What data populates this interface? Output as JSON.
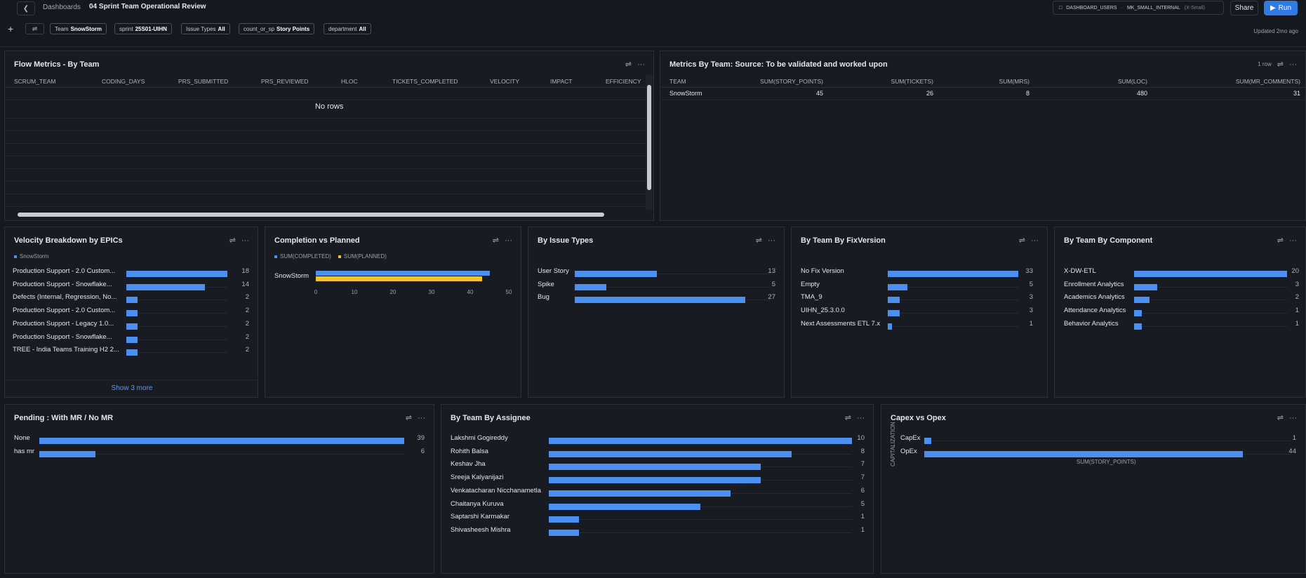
{
  "header": {
    "back_icon": "chevron-left-icon",
    "breadcrumb": "Dashboards",
    "title": "04 Sprint Team Operational Review",
    "role": "DASHBOARD_USERS",
    "warehouse": "MK_SMALL_INTERNAL",
    "warehouse_size": "(X-Small)",
    "share": "Share",
    "run": "Run",
    "updated": "Updated 2mo ago"
  },
  "filters": [
    {
      "label": "Team",
      "value": "SnowStorm"
    },
    {
      "label": "sprint",
      "value": "25S01-UIHN"
    },
    {
      "label": "Issue Types",
      "value": "All"
    },
    {
      "label": "count_or_sp",
      "value": "Story Points"
    },
    {
      "label": "department",
      "value": "All"
    }
  ],
  "flow_metrics": {
    "title": "Flow Metrics - By Team",
    "columns": [
      "SCRUM_TEAM",
      "CODING_DAYS",
      "PRS_SUBMITTED",
      "PRS_REVIEWED",
      "HLOC",
      "TICKETS_COMPLETED",
      "VELOCITY",
      "IMPACT",
      "EFFICIENCY"
    ],
    "empty": "No rows"
  },
  "metrics_by_team": {
    "title": "Metrics By Team: Source: To be validated and worked upon",
    "rows_note": "1 row",
    "columns": [
      "TEAM",
      "SUM(STORY_POINTS)",
      "SUM(TICKETS)",
      "SUM(MRS)",
      "SUM(LOC)",
      "SUM(MR_COMMENTS)"
    ],
    "rows": [
      [
        "SnowStorm",
        "45",
        "26",
        "8",
        "480",
        "31"
      ]
    ]
  },
  "velocity_epics": {
    "title": "Velocity Breakdown by EPICs",
    "legend": "SnowStorm",
    "show_more": "Show 3 more",
    "items": [
      {
        "label": "Production Support - 2.0 Custom...",
        "value": 18
      },
      {
        "label": "Production Support - Snowflake...",
        "value": 14
      },
      {
        "label": "Defects (Internal, Regression, No...",
        "value": 2
      },
      {
        "label": "Production Support - 2.0 Custom...",
        "value": 2
      },
      {
        "label": "Production Support - Legacy 1.0...",
        "value": 2
      },
      {
        "label": "Production Support - Snowflake...",
        "value": 2
      },
      {
        "label": "TREE - India Teams Training H2 2...",
        "value": 2
      }
    ]
  },
  "completion": {
    "title": "Completion vs Planned",
    "legend_completed": "SUM(COMPLETED)",
    "legend_planned": "SUM(PLANNED)",
    "category": "SnowStorm",
    "completed": 45,
    "planned": 43,
    "ticks": [
      "0",
      "10",
      "20",
      "30",
      "40",
      "50"
    ]
  },
  "issue_types": {
    "title": "By Issue Types",
    "items": [
      {
        "label": "User Story",
        "value": 13
      },
      {
        "label": "Spike",
        "value": 5
      },
      {
        "label": "Bug",
        "value": 27
      }
    ]
  },
  "fix_version": {
    "title": "By Team By FixVersion",
    "items": [
      {
        "label": "No Fix Version",
        "value": 33
      },
      {
        "label": "Empty",
        "value": 5
      },
      {
        "label": "TMA_9",
        "value": 3
      },
      {
        "label": "UIHN_25.3.0.0",
        "value": 3
      },
      {
        "label": "Next Assessments ETL 7.x",
        "value": 1
      }
    ]
  },
  "component": {
    "title": "By Team By Component",
    "items": [
      {
        "label": "X-DW-ETL",
        "value": 20
      },
      {
        "label": "Enrollment Analytics",
        "value": 3
      },
      {
        "label": "Academics Analytics",
        "value": 2
      },
      {
        "label": "Attendance Analytics",
        "value": 1
      },
      {
        "label": "Behavior Analytics",
        "value": 1
      }
    ]
  },
  "pending": {
    "title": "Pending : With MR / No MR",
    "items": [
      {
        "label": "None",
        "value": 39
      },
      {
        "label": "has mr",
        "value": 6
      }
    ]
  },
  "assignee": {
    "title": "By Team By Assignee",
    "items": [
      {
        "label": "Lakshmi Gogireddy",
        "value": 10
      },
      {
        "label": "Rohith Balsa",
        "value": 8
      },
      {
        "label": "Keshav Jha",
        "value": 7
      },
      {
        "label": "Sreeja Kalyanijazi",
        "value": 7
      },
      {
        "label": "Venkatacharan Nicchanametla",
        "value": 6
      },
      {
        "label": "Chaitanya Kuruva",
        "value": 5
      },
      {
        "label": "Saptarshi Karmakar",
        "value": 1
      },
      {
        "label": "Shivasheesh Mishra",
        "value": 1
      }
    ]
  },
  "capex": {
    "title": "Capex vs Opex",
    "y_axis": "CAPITALIZATION",
    "x_axis": "SUM(STORY_POINTS)",
    "items": [
      {
        "label": "CapEx",
        "value": 1
      },
      {
        "label": "OpEx",
        "value": 44
      }
    ]
  },
  "colors": {
    "bar": "#4b8ff0",
    "planned": "#f2c232",
    "run": "#2f7be3",
    "bg": "#15181e"
  },
  "icons": {
    "settings": "sliders-icon",
    "more": "more-icon",
    "run": "play-icon",
    "add": "plus-icon"
  },
  "chart_data": [
    {
      "type": "bar",
      "title": "Velocity Breakdown by EPICs",
      "categories": [
        "Production Support - 2.0 Custom...",
        "Production Support - Snowflake...",
        "Defects (Internal, Regression, No...",
        "Production Support - 2.0 Custom...",
        "Production Support - Legacy 1.0...",
        "Production Support - Snowflake...",
        "TREE - India Teams Training H2 2..."
      ],
      "series": [
        {
          "name": "SnowStorm",
          "values": [
            18,
            14,
            2,
            2,
            2,
            2,
            2
          ]
        }
      ]
    },
    {
      "type": "bar",
      "title": "Completion vs Planned",
      "categories": [
        "SnowStorm"
      ],
      "series": [
        {
          "name": "SUM(COMPLETED)",
          "values": [
            45
          ]
        },
        {
          "name": "SUM(PLANNED)",
          "values": [
            43
          ]
        }
      ],
      "xlim": [
        0,
        50
      ]
    },
    {
      "type": "bar",
      "title": "By Issue Types",
      "categories": [
        "User Story",
        "Spike",
        "Bug"
      ],
      "values": [
        13,
        5,
        27
      ]
    },
    {
      "type": "bar",
      "title": "By Team By FixVersion",
      "categories": [
        "No Fix Version",
        "Empty",
        "TMA_9",
        "UIHN_25.3.0.0",
        "Next Assessments ETL 7.x"
      ],
      "values": [
        33,
        5,
        3,
        3,
        1
      ]
    },
    {
      "type": "bar",
      "title": "By Team By Component",
      "categories": [
        "X-DW-ETL",
        "Enrollment Analytics",
        "Academics Analytics",
        "Attendance Analytics",
        "Behavior Analytics"
      ],
      "values": [
        20,
        3,
        2,
        1,
        1
      ]
    },
    {
      "type": "bar",
      "title": "Pending : With MR / No MR",
      "categories": [
        "None",
        "has mr"
      ],
      "values": [
        39,
        6
      ]
    },
    {
      "type": "bar",
      "title": "By Team By Assignee",
      "categories": [
        "Lakshmi Gogireddy",
        "Rohith Balsa",
        "Keshav Jha",
        "Sreeja Kalyanijazi",
        "Venkatacharan Nicchanametla",
        "Chaitanya Kuruva",
        "Saptarshi Karmakar",
        "Shivasheesh Mishra"
      ],
      "values": [
        10,
        8,
        7,
        7,
        6,
        5,
        1,
        1
      ]
    },
    {
      "type": "bar",
      "title": "Capex vs Opex",
      "categories": [
        "CapEx",
        "OpEx"
      ],
      "values": [
        1,
        44
      ],
      "xlabel": "SUM(STORY_POINTS)",
      "ylabel": "CAPITALIZATION"
    }
  ]
}
